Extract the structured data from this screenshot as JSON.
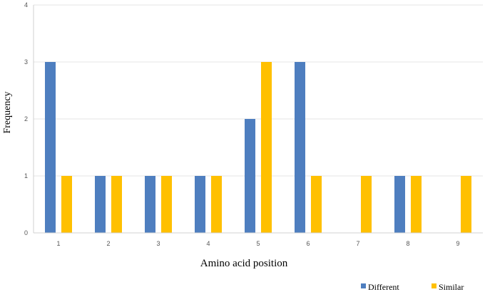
{
  "chart_data": {
    "type": "bar",
    "title": "",
    "xlabel": "Amino acid position",
    "ylabel": "Frequency",
    "categories": [
      "1",
      "2",
      "3",
      "4",
      "5",
      "6",
      "7",
      "8",
      "9"
    ],
    "ylim": [
      0,
      4
    ],
    "yticks": [
      0,
      1,
      2,
      3,
      4
    ],
    "grid": true,
    "legend_position": "bottom-right",
    "series": [
      {
        "name": "Different",
        "color": "#4e7ebf",
        "values": [
          3,
          1,
          1,
          1,
          2,
          3,
          0,
          1,
          0
        ]
      },
      {
        "name": "Similar",
        "color": "#ffc000",
        "values": [
          1,
          1,
          1,
          1,
          3,
          1,
          1,
          1,
          1
        ]
      }
    ]
  }
}
